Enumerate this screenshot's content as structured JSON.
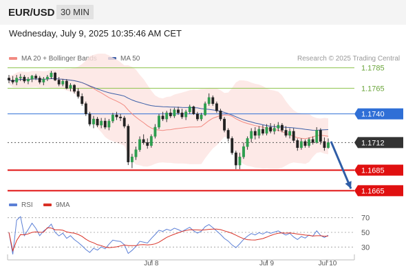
{
  "header": {
    "symbol": "EUR/USD",
    "interval": "30 MIN",
    "datetime": "Wednesday, July 9, 2025 10:35:46 AM CET"
  },
  "legend": {
    "ma20_label": "MA 20 + Bollinger Bands",
    "ma50_label": "MA 50",
    "ma20_color": "#f28b82",
    "ma50_color": "#3b5fa8",
    "rsi_label": "RSI",
    "ma9_label": "9MA",
    "rsi_color": "#5b7fd6",
    "ma9_color": "#d93025"
  },
  "research": "Research © 2025 Trading Central",
  "chart_data": [
    {
      "type": "candlestick",
      "title": "",
      "ylim": [
        1.16565,
        1.17975
      ],
      "levels": [
        {
          "value": 1.1785,
          "label": "1.1785",
          "kind": "target",
          "color": "#8bc34a",
          "text_color": "#6aa53a"
        },
        {
          "value": 1.1765,
          "label": "1.1765",
          "kind": "target",
          "color": "#8bc34a",
          "text_color": "#6aa53a"
        },
        {
          "value": 1.174,
          "label": "1.1740",
          "kind": "pivot",
          "color": "#2f6fd6",
          "text_color": "#ffffff"
        },
        {
          "value": 1.1712,
          "label": "1.1712",
          "kind": "last",
          "color": "#333333",
          "text_color": "#ffffff"
        },
        {
          "value": 1.1685,
          "label": "1.1685",
          "kind": "support",
          "color": "#e01010",
          "text_color": "#ffffff"
        },
        {
          "value": 1.1665,
          "label": "1.1665",
          "kind": "support",
          "color": "#e01010",
          "text_color": "#ffffff"
        }
      ],
      "x_ticks": [
        "Jul 8",
        "Jul 9",
        "Jul 10"
      ],
      "forecast": {
        "from": 1.1713,
        "to": 1.1667,
        "color": "#2f5da6"
      },
      "series": [
        {
          "name": "MA 20",
          "color": "#f28b82"
        },
        {
          "name": "MA 50",
          "color": "#3b5fa8"
        }
      ],
      "ohlc": [
        [
          1.1775,
          1.1778,
          1.177,
          1.1773
        ],
        [
          1.1773,
          1.1777,
          1.1769,
          1.1771
        ],
        [
          1.1771,
          1.1778,
          1.1768,
          1.1775
        ],
        [
          1.1775,
          1.1779,
          1.1772,
          1.1776
        ],
        [
          1.1776,
          1.1778,
          1.177,
          1.1772
        ],
        [
          1.1772,
          1.1776,
          1.1769,
          1.1774
        ],
        [
          1.1774,
          1.1778,
          1.1771,
          1.1777
        ],
        [
          1.1777,
          1.1779,
          1.1773,
          1.1775
        ],
        [
          1.1775,
          1.1777,
          1.1769,
          1.1771
        ],
        [
          1.1771,
          1.1776,
          1.1768,
          1.1774
        ],
        [
          1.1774,
          1.1778,
          1.1772,
          1.1776
        ],
        [
          1.1776,
          1.1782,
          1.1774,
          1.178
        ],
        [
          1.178,
          1.1781,
          1.1772,
          1.1773
        ],
        [
          1.1773,
          1.1776,
          1.1767,
          1.1769
        ],
        [
          1.1769,
          1.1774,
          1.1767,
          1.1772
        ],
        [
          1.1772,
          1.1774,
          1.1764,
          1.1765
        ],
        [
          1.1765,
          1.177,
          1.1762,
          1.1768
        ],
        [
          1.1768,
          1.1769,
          1.176,
          1.1762
        ],
        [
          1.1762,
          1.1765,
          1.1755,
          1.1757
        ],
        [
          1.1757,
          1.176,
          1.1748,
          1.175
        ],
        [
          1.175,
          1.1752,
          1.1738,
          1.174
        ],
        [
          1.174,
          1.1742,
          1.1728,
          1.173
        ],
        [
          1.173,
          1.1738,
          1.1726,
          1.1735
        ],
        [
          1.1735,
          1.1737,
          1.1727,
          1.1729
        ],
        [
          1.1729,
          1.1736,
          1.1726,
          1.1733
        ],
        [
          1.1733,
          1.1736,
          1.1725,
          1.1727
        ],
        [
          1.1727,
          1.1735,
          1.1724,
          1.1733
        ],
        [
          1.1733,
          1.1741,
          1.1731,
          1.1739
        ],
        [
          1.1739,
          1.1742,
          1.1734,
          1.1737
        ],
        [
          1.1737,
          1.174,
          1.1733,
          1.1736
        ],
        [
          1.1736,
          1.1738,
          1.1726,
          1.1728
        ],
        [
          1.1728,
          1.173,
          1.169,
          1.1693
        ],
        [
          1.1693,
          1.1701,
          1.1687,
          1.1698
        ],
        [
          1.1698,
          1.1708,
          1.1695,
          1.1705
        ],
        [
          1.1705,
          1.1718,
          1.1703,
          1.1715
        ],
        [
          1.1715,
          1.172,
          1.171,
          1.1712
        ],
        [
          1.1712,
          1.1716,
          1.1706,
          1.1709
        ],
        [
          1.1709,
          1.172,
          1.1707,
          1.1718
        ],
        [
          1.1718,
          1.173,
          1.1716,
          1.1727
        ],
        [
          1.1727,
          1.174,
          1.1725,
          1.1738
        ],
        [
          1.1738,
          1.1742,
          1.1733,
          1.1735
        ],
        [
          1.1735,
          1.1743,
          1.1732,
          1.1741
        ],
        [
          1.1741,
          1.1745,
          1.1736,
          1.1738
        ],
        [
          1.1738,
          1.1746,
          1.1736,
          1.1744
        ],
        [
          1.1744,
          1.1747,
          1.1739,
          1.1741
        ],
        [
          1.1741,
          1.1745,
          1.1735,
          1.1737
        ],
        [
          1.1737,
          1.1744,
          1.1734,
          1.1742
        ],
        [
          1.1742,
          1.1749,
          1.174,
          1.1747
        ],
        [
          1.1747,
          1.1748,
          1.1739,
          1.174
        ],
        [
          1.174,
          1.1742,
          1.1733,
          1.1735
        ],
        [
          1.1735,
          1.1741,
          1.1733,
          1.1739
        ],
        [
          1.1739,
          1.1752,
          1.1738,
          1.175
        ],
        [
          1.175,
          1.176,
          1.1748,
          1.1756
        ],
        [
          1.1756,
          1.1758,
          1.1748,
          1.175
        ],
        [
          1.175,
          1.1752,
          1.1741,
          1.1743
        ],
        [
          1.1743,
          1.1745,
          1.1733,
          1.1735
        ],
        [
          1.1735,
          1.1737,
          1.1722,
          1.1724
        ],
        [
          1.1724,
          1.1726,
          1.1713,
          1.1716
        ],
        [
          1.1716,
          1.1718,
          1.17,
          1.1702
        ],
        [
          1.1702,
          1.1704,
          1.1686,
          1.169
        ],
        [
          1.169,
          1.1702,
          1.1686,
          1.1698
        ],
        [
          1.1698,
          1.1712,
          1.1696,
          1.1708
        ],
        [
          1.1708,
          1.1718,
          1.1705,
          1.1716
        ],
        [
          1.1716,
          1.1726,
          1.1712,
          1.1723
        ],
        [
          1.1723,
          1.1727,
          1.1715,
          1.1719
        ],
        [
          1.1719,
          1.1728,
          1.1716,
          1.1725
        ],
        [
          1.1725,
          1.1729,
          1.1719,
          1.1721
        ],
        [
          1.1721,
          1.173,
          1.1719,
          1.1727
        ],
        [
          1.1727,
          1.1731,
          1.1721,
          1.1723
        ],
        [
          1.1723,
          1.173,
          1.172,
          1.1726
        ],
        [
          1.1726,
          1.1732,
          1.1723,
          1.1729
        ],
        [
          1.1729,
          1.1731,
          1.1722,
          1.1724
        ],
        [
          1.1724,
          1.1728,
          1.1717,
          1.1719
        ],
        [
          1.1719,
          1.1726,
          1.1716,
          1.1723
        ],
        [
          1.1723,
          1.1726,
          1.1712,
          1.1714
        ],
        [
          1.1714,
          1.1716,
          1.1704,
          1.1707
        ],
        [
          1.1707,
          1.1716,
          1.1705,
          1.1713
        ],
        [
          1.1713,
          1.1715,
          1.1707,
          1.1709
        ],
        [
          1.1709,
          1.1717,
          1.1707,
          1.1715
        ],
        [
          1.1715,
          1.1718,
          1.171,
          1.1712
        ],
        [
          1.1712,
          1.1727,
          1.1711,
          1.1724
        ],
        [
          1.1724,
          1.1726,
          1.171,
          1.1713
        ],
        [
          1.1713,
          1.1717,
          1.1704,
          1.1707
        ],
        [
          1.1707,
          1.1716,
          1.1706,
          1.1712
        ]
      ]
    },
    {
      "type": "line",
      "title": "",
      "ylim": [
        20,
        80
      ],
      "y_ticks": [
        70,
        50,
        30
      ],
      "series": [
        {
          "name": "RSI",
          "color": "#5b7fd6"
        },
        {
          "name": "9MA",
          "color": "#d93025"
        }
      ]
    }
  ]
}
